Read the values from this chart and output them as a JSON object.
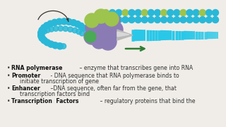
{
  "background_color": "#f0ede8",
  "bullets": [
    {
      "bold": "RNA polymerase",
      "separator": " – ",
      "normal": "enzyme that transcribes gene into RNA"
    },
    {
      "bold": "Promoter",
      "separator": " - ",
      "normal": "DNA sequence that RNA polymerase binds to",
      "normal2": "initiate transcription of gene"
    },
    {
      "bold": "Enhancer",
      "separator": " –",
      "normal": "DNA sequence, often far from the gene, that",
      "normal2": "transcription factors bind"
    },
    {
      "bold": "Transcription  Factors",
      "separator": " – ",
      "normal": "regulatory proteins that bind the",
      "normal2": ""
    }
  ],
  "dna_color": "#29b8d8",
  "dna_dot_color": "#29b8d8",
  "polymerase_color": "#8b7bb5",
  "green_subunit_color": "#9dc44d",
  "green_stripe_color": "#4aaa55",
  "cone_color": "#b8b8b8",
  "rna_color": "#29c8e8",
  "arrow_color": "#2e7d32",
  "curve_arrow_color": "#333333",
  "font_size": 5.6
}
